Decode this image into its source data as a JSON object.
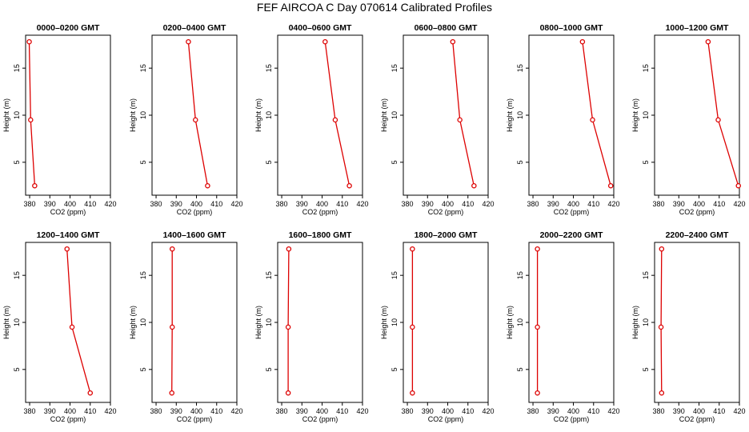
{
  "title": "FEF AIRCOA C  Day 070614  Calibrated Profiles",
  "colors": {
    "profile": "#dd0000",
    "axis": "#000000",
    "background": "#ffffff"
  },
  "chart_data": [
    {
      "type": "line",
      "title": "0000–0200 GMT",
      "xlabel": "CO2 (ppm)",
      "ylabel": "Height (m)",
      "xlim": [
        378,
        420
      ],
      "ylim": [
        1.5,
        18.5
      ],
      "x_ticks": [
        "380",
        "390",
        "400",
        "410",
        "420"
      ],
      "y_ticks": [
        "5",
        "10",
        "15"
      ],
      "points": [
        {
          "x": 379.8,
          "y": 17.8
        },
        {
          "x": 380.5,
          "y": 9.5
        },
        {
          "x": 382.5,
          "y": 2.5
        }
      ]
    },
    {
      "type": "line",
      "title": "0200–0400 GMT",
      "xlabel": "CO2 (ppm)",
      "ylabel": "Height (m)",
      "xlim": [
        378,
        420
      ],
      "ylim": [
        1.5,
        18.5
      ],
      "x_ticks": [
        "380",
        "390",
        "400",
        "410",
        "420"
      ],
      "y_ticks": [
        "5",
        "10",
        "15"
      ],
      "points": [
        {
          "x": 396.0,
          "y": 17.8
        },
        {
          "x": 399.5,
          "y": 9.5
        },
        {
          "x": 405.5,
          "y": 2.5
        }
      ]
    },
    {
      "type": "line",
      "title": "0400–0600 GMT",
      "xlabel": "CO2 (ppm)",
      "ylabel": "Height (m)",
      "xlim": [
        378,
        420
      ],
      "ylim": [
        1.5,
        18.5
      ],
      "x_ticks": [
        "380",
        "390",
        "400",
        "410",
        "420"
      ],
      "y_ticks": [
        "5",
        "10",
        "15"
      ],
      "points": [
        {
          "x": 401.5,
          "y": 17.8
        },
        {
          "x": 406.5,
          "y": 9.5
        },
        {
          "x": 413.5,
          "y": 2.5
        }
      ]
    },
    {
      "type": "line",
      "title": "0600–0800 GMT",
      "xlabel": "CO2 (ppm)",
      "ylabel": "Height (m)",
      "xlim": [
        378,
        420
      ],
      "ylim": [
        1.5,
        18.5
      ],
      "x_ticks": [
        "380",
        "390",
        "400",
        "410",
        "420"
      ],
      "y_ticks": [
        "5",
        "10",
        "15"
      ],
      "points": [
        {
          "x": 402.5,
          "y": 17.8
        },
        {
          "x": 406.0,
          "y": 9.5
        },
        {
          "x": 413.0,
          "y": 2.5
        }
      ]
    },
    {
      "type": "line",
      "title": "0800–1000 GMT",
      "xlabel": "CO2 (ppm)",
      "ylabel": "Height (m)",
      "xlim": [
        378,
        420
      ],
      "ylim": [
        1.5,
        18.5
      ],
      "x_ticks": [
        "380",
        "390",
        "400",
        "410",
        "420"
      ],
      "y_ticks": [
        "5",
        "10",
        "15"
      ],
      "points": [
        {
          "x": 404.5,
          "y": 17.8
        },
        {
          "x": 409.5,
          "y": 9.5
        },
        {
          "x": 418.5,
          "y": 2.5
        }
      ]
    },
    {
      "type": "line",
      "title": "1000–1200 GMT",
      "xlabel": "CO2 (ppm)",
      "ylabel": "Height (m)",
      "xlim": [
        378,
        420
      ],
      "ylim": [
        1.5,
        18.5
      ],
      "x_ticks": [
        "380",
        "390",
        "400",
        "410",
        "420"
      ],
      "y_ticks": [
        "5",
        "10",
        "15"
      ],
      "points": [
        {
          "x": 404.5,
          "y": 17.8
        },
        {
          "x": 409.5,
          "y": 9.5
        },
        {
          "x": 419.5,
          "y": 2.5
        }
      ]
    },
    {
      "type": "line",
      "title": "1200–1400 GMT",
      "xlabel": "CO2 (ppm)",
      "ylabel": "Height (m)",
      "xlim": [
        378,
        420
      ],
      "ylim": [
        1.5,
        18.5
      ],
      "x_ticks": [
        "380",
        "390",
        "400",
        "410",
        "420"
      ],
      "y_ticks": [
        "5",
        "10",
        "15"
      ],
      "points": [
        {
          "x": 398.5,
          "y": 17.8
        },
        {
          "x": 401.0,
          "y": 9.5
        },
        {
          "x": 410.0,
          "y": 2.5
        }
      ]
    },
    {
      "type": "line",
      "title": "1400–1600 GMT",
      "xlabel": "CO2 (ppm)",
      "ylabel": "Height (m)",
      "xlim": [
        378,
        420
      ],
      "ylim": [
        1.5,
        18.5
      ],
      "x_ticks": [
        "380",
        "390",
        "400",
        "410",
        "420"
      ],
      "y_ticks": [
        "5",
        "10",
        "15"
      ],
      "points": [
        {
          "x": 388.0,
          "y": 17.8
        },
        {
          "x": 388.0,
          "y": 9.5
        },
        {
          "x": 387.8,
          "y": 2.5
        }
      ]
    },
    {
      "type": "line",
      "title": "1600–1800 GMT",
      "xlabel": "CO2 (ppm)",
      "ylabel": "Height (m)",
      "xlim": [
        378,
        420
      ],
      "ylim": [
        1.5,
        18.5
      ],
      "x_ticks": [
        "380",
        "390",
        "400",
        "410",
        "420"
      ],
      "y_ticks": [
        "5",
        "10",
        "15"
      ],
      "points": [
        {
          "x": 383.5,
          "y": 17.8
        },
        {
          "x": 383.2,
          "y": 9.5
        },
        {
          "x": 383.2,
          "y": 2.5
        }
      ]
    },
    {
      "type": "line",
      "title": "1800–2000 GMT",
      "xlabel": "CO2 (ppm)",
      "ylabel": "Height (m)",
      "xlim": [
        378,
        420
      ],
      "ylim": [
        1.5,
        18.5
      ],
      "x_ticks": [
        "380",
        "390",
        "400",
        "410",
        "420"
      ],
      "y_ticks": [
        "5",
        "10",
        "15"
      ],
      "points": [
        {
          "x": 382.5,
          "y": 17.8
        },
        {
          "x": 382.5,
          "y": 9.5
        },
        {
          "x": 382.5,
          "y": 2.5
        }
      ]
    },
    {
      "type": "line",
      "title": "2000–2200 GMT",
      "xlabel": "CO2 (ppm)",
      "ylabel": "Height (m)",
      "xlim": [
        378,
        420
      ],
      "ylim": [
        1.5,
        18.5
      ],
      "x_ticks": [
        "380",
        "390",
        "400",
        "410",
        "420"
      ],
      "y_ticks": [
        "5",
        "10",
        "15"
      ],
      "points": [
        {
          "x": 382.2,
          "y": 17.8
        },
        {
          "x": 382.2,
          "y": 9.5
        },
        {
          "x": 382.2,
          "y": 2.5
        }
      ]
    },
    {
      "type": "line",
      "title": "2200–2400 GMT",
      "xlabel": "CO2 (ppm)",
      "ylabel": "Height (m)",
      "xlim": [
        378,
        420
      ],
      "ylim": [
        1.5,
        18.5
      ],
      "x_ticks": [
        "380",
        "390",
        "400",
        "410",
        "420"
      ],
      "y_ticks": [
        "5",
        "10",
        "15"
      ],
      "points": [
        {
          "x": 381.5,
          "y": 17.8
        },
        {
          "x": 381.2,
          "y": 9.5
        },
        {
          "x": 381.5,
          "y": 2.5
        }
      ]
    }
  ]
}
